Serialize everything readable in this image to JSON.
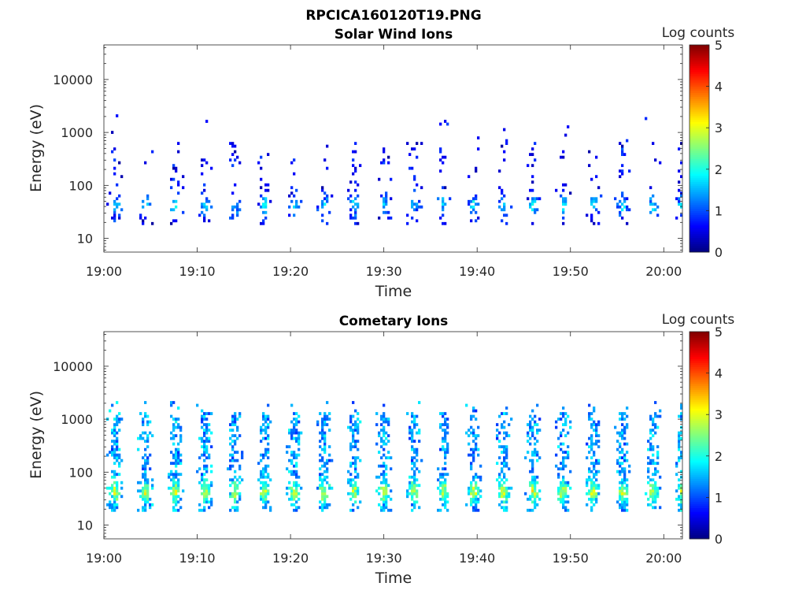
{
  "figure": {
    "title": "RPCICA160120T19.PNG"
  },
  "chart_data": [
    {
      "type": "heatmap",
      "title": "Solar Wind Ions",
      "xlabel": "Time",
      "ylabel": "Energy (eV)",
      "x_tick_labels": [
        "19:00",
        "19:10",
        "19:20",
        "19:30",
        "19:40",
        "19:50",
        "20:00"
      ],
      "xlim_minutes": [
        0,
        62
      ],
      "y_scale": "log",
      "ylim": [
        5.5,
        45000
      ],
      "y_tick_labels": [
        "10",
        "100",
        "1000",
        "10000"
      ],
      "y_tick_values": [
        10,
        100,
        1000,
        10000
      ],
      "colorbar": {
        "label": "Log counts",
        "range": [
          0,
          5
        ],
        "tick_labels": [
          "0",
          "1",
          "2",
          "3",
          "4",
          "5"
        ],
        "colormap": "jet"
      },
      "typical_log_counts_range": [
        0.3,
        2.0
      ],
      "burst_period_minutes": 3.2
    },
    {
      "type": "heatmap",
      "title": "Cometary Ions",
      "xlabel": "Time",
      "ylabel": "Energy (eV)",
      "x_tick_labels": [
        "19:00",
        "19:10",
        "19:20",
        "19:30",
        "19:40",
        "19:50",
        "20:00"
      ],
      "xlim_minutes": [
        0,
        62
      ],
      "y_scale": "log",
      "ylim": [
        5.5,
        45000
      ],
      "y_tick_labels": [
        "10",
        "100",
        "1000",
        "10000"
      ],
      "y_tick_values": [
        10,
        100,
        1000,
        10000
      ],
      "colorbar": {
        "label": "Log counts",
        "range": [
          0,
          5
        ],
        "tick_labels": [
          "0",
          "1",
          "2",
          "3",
          "4",
          "5"
        ],
        "colormap": "jet"
      },
      "typical_log_counts_range": [
        1.0,
        3.2
      ],
      "burst_period_minutes": 3.2
    }
  ]
}
